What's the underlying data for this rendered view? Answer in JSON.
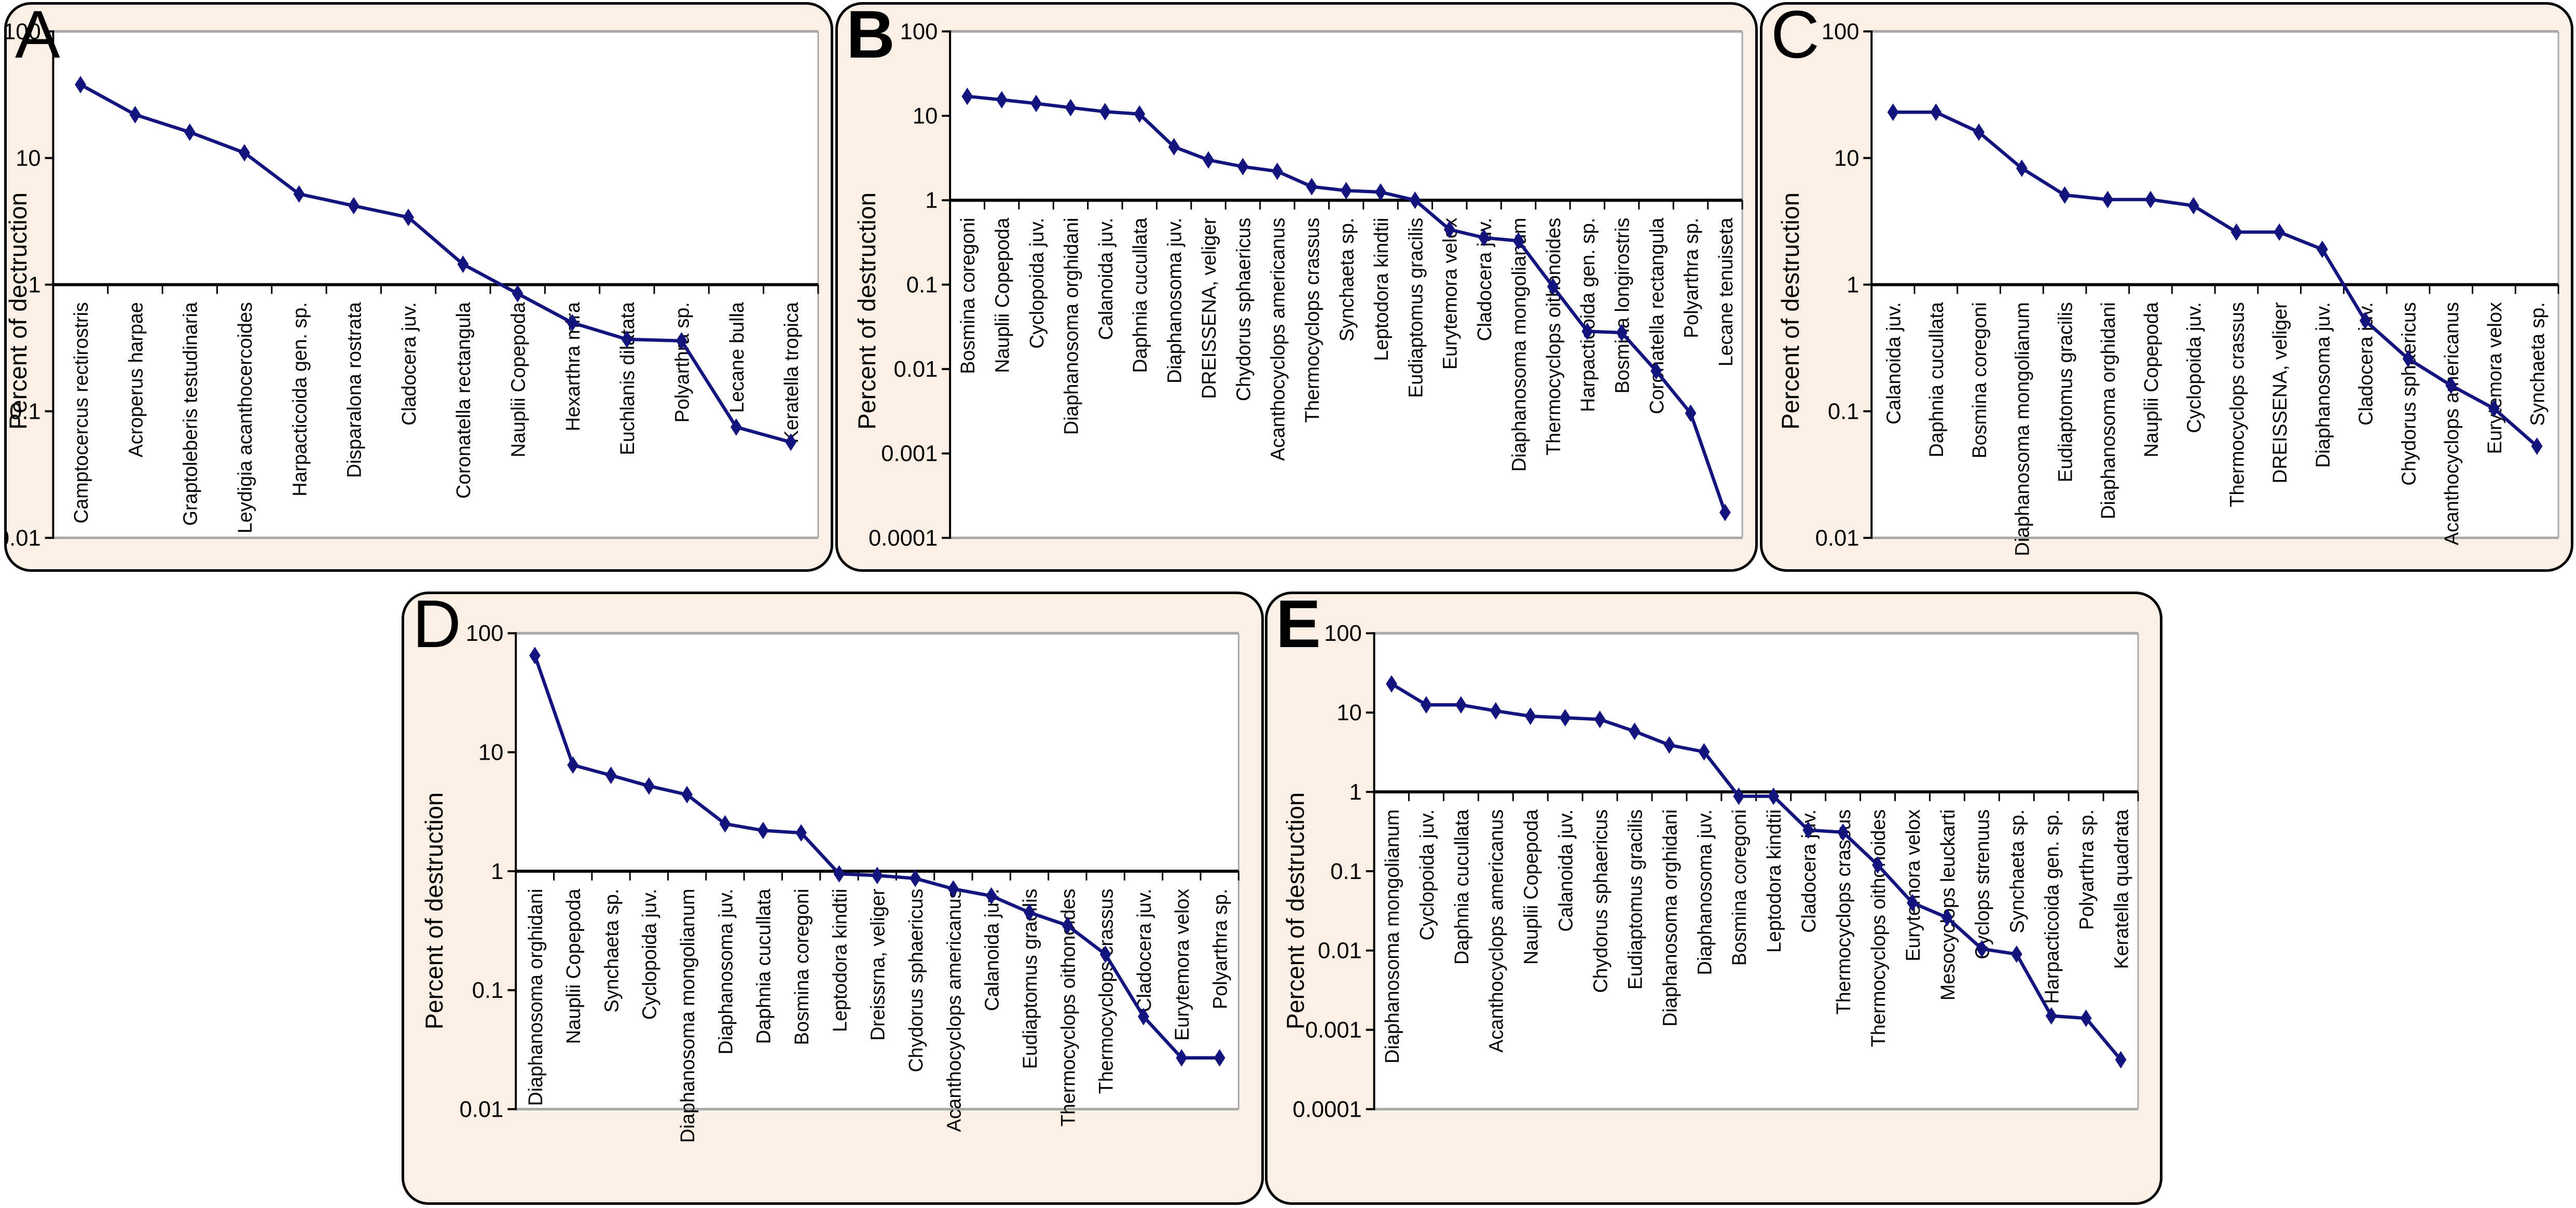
{
  "figure": {
    "description": "Five-panel figure (A-E) of log-scale rank curves of zooplankton destruction percentages",
    "panel_letters": [
      "A",
      "B",
      "C",
      "D",
      "E"
    ]
  },
  "style": {
    "panel_background": "#fcefe4",
    "panel_border": "#000000",
    "line_color": "#14147f",
    "plot_border_gray": "#a9a9a9",
    "axis_color": "#000000",
    "plot_background": "#ffffff"
  },
  "chart_data": [
    {
      "panel": "A",
      "type": "line",
      "yscale": "log",
      "ylabel": "Percent of dectruction",
      "ylim": [
        0.01,
        100
      ],
      "ytick_labels": [
        "100",
        "10",
        "1",
        "0.1",
        "0.01"
      ],
      "x_baseline_value": 1,
      "legend": "none",
      "grid": "off",
      "marker": "diamond",
      "categories": [
        "Camptocercus rectirostris",
        "Acroperus harpae",
        "Graptoleberis testudinaria",
        "Leydigia acanthocercoides",
        "Harpacticoida gen. sp.",
        "Disparalona rostrata",
        "Cladocera juv.",
        "Coronatella rectangula",
        "Nauplii Copepoda",
        "Hexarthra mira",
        "Euchlanis dilatata",
        "Polyarthra sp.",
        "Lecane bulla",
        "Keratella tropica"
      ],
      "values": [
        38,
        22,
        16,
        11,
        5.2,
        4.2,
        3.4,
        1.45,
        0.85,
        0.5,
        0.37,
        0.36,
        0.075,
        0.057
      ]
    },
    {
      "panel": "B",
      "type": "line",
      "yscale": "log",
      "ylabel": "Percent of destruction",
      "ylim": [
        0.0001,
        100
      ],
      "ytick_labels": [
        "100",
        "10",
        "1",
        "0.1",
        "0.01",
        "0.001",
        "0.0001"
      ],
      "x_baseline_value": 1,
      "legend": "none",
      "grid": "off",
      "marker": "diamond",
      "categories": [
        "Bosmina coregoni",
        "Nauplii Copepoda",
        "Cyclopoida juv.",
        "Diaphanosoma orghidani",
        "Calanoida juv.",
        "Daphnia cucullata",
        "Diaphanosoma juv.",
        "DREISSENA, veliger",
        "Chydorus sphaericus",
        "Acanthocyclops americanus",
        "Thermocyclops crassus",
        "Synchaeta sp.",
        "Leptodora kindtii",
        "Eudiaptomus gracilis",
        "Eurytemora velox",
        "Cladocera juv.",
        "Diaphanosoma mongolianum",
        "Thermocyclops oithonoides",
        "Harpacticoida gen. sp.",
        "Bosmina longirostris",
        "Coronatella rectangula",
        "Polyarthra sp.",
        "Lecane tenuiseta"
      ],
      "values": [
        17,
        15.5,
        14,
        12.5,
        11.2,
        10.5,
        4.3,
        3,
        2.5,
        2.2,
        1.45,
        1.3,
        1.25,
        1,
        0.45,
        0.36,
        0.33,
        0.095,
        0.028,
        0.027,
        0.0095,
        0.003,
        0.0002
      ]
    },
    {
      "panel": "C",
      "type": "line",
      "yscale": "log",
      "ylabel": "Percent of destruction",
      "ylim": [
        0.01,
        100
      ],
      "ytick_labels": [
        "100",
        "10",
        "1",
        "0.1",
        "0.01"
      ],
      "x_baseline_value": 1,
      "legend": "none",
      "grid": "off",
      "marker": "diamond",
      "categories": [
        "Calanoida juv.",
        "Daphnia cucullata",
        "Bosmina coregoni",
        "Diaphanosoma mongolianum",
        "Eudiaptomus gracilis",
        "Diaphanosoma orghidani",
        "Nauplii Copepoda",
        "Cyclopoida juv.",
        "Thermocyclops crassus",
        "DREISSENA, veliger",
        "Diaphanosoma juv.",
        "Cladocera juv.",
        "Chydorus sphaericus",
        "Acanthocyclops americanus",
        "Eurytemora velox",
        "Synchaeta sp."
      ],
      "values": [
        23,
        23,
        16,
        8.3,
        5.1,
        4.7,
        4.7,
        4.2,
        2.6,
        2.6,
        1.9,
        0.52,
        0.26,
        0.16,
        0.105,
        0.053
      ]
    },
    {
      "panel": "D",
      "type": "line",
      "yscale": "log",
      "ylabel": "Percent of destruction",
      "ylim": [
        0.01,
        100
      ],
      "ytick_labels": [
        "100",
        "10",
        "1",
        "0.1",
        "0.01"
      ],
      "x_baseline_value": 1,
      "legend": "none",
      "grid": "off",
      "marker": "diamond",
      "categories": [
        "Diaphanosoma orghidani",
        "Nauplii Copepoda",
        "Synchaeta sp.",
        "Cyclopoida juv.",
        "Diaphanosoma mongolianum",
        "Diaphanosoma juv.",
        "Daphnia cucullata",
        "Bosmina coregoni",
        "Leptodora kindtii",
        "Dreissrna, veliger",
        "Chydorus sphaericus",
        "Acanthocyclops americanus",
        "Calanoida juv.",
        "Eudiaptomus gracilis",
        "Thermocyclops oithonoides",
        "Thermocyclops crassus",
        "Cladocera juv.",
        "Eurytemora velox",
        "Polyarthra sp."
      ],
      "values": [
        65,
        7.8,
        6.4,
        5.2,
        4.4,
        2.5,
        2.2,
        2.1,
        0.95,
        0.92,
        0.87,
        0.71,
        0.62,
        0.45,
        0.35,
        0.2,
        0.06,
        0.027,
        0.027
      ]
    },
    {
      "panel": "E",
      "type": "line",
      "yscale": "log",
      "ylabel": "Percent of destruction",
      "ylim": [
        0.0001,
        100
      ],
      "ytick_labels": [
        "100",
        "10",
        "1",
        "0.1",
        "0.01",
        "0.001",
        "0.0001"
      ],
      "x_baseline_value": 1,
      "legend": "none",
      "grid": "off",
      "marker": "diamond",
      "categories": [
        "Diaphanosoma mongolianum",
        "Cyclopoida juv.",
        "Daphnia cucullata",
        "Acanthocyclops americanus",
        "Nauplii Copepoda",
        "Calanoida juv.",
        "Chydorus sphaericus",
        "Eudiaptomus gracilis",
        "Diaphanosoma orghidani",
        "Diaphanosoma juv.",
        "Bosmina coregoni",
        "Leptodora kindtii",
        "Cladocera juv.",
        "Thermocyclops crassus",
        "Thermocyclops oithonoides",
        "Eurytemora velox",
        "Mesocyclops leuckarti",
        "Cyclops strenuus",
        "Synchaeta sp.",
        "Harpacticoida gen. sp.",
        "Polyarthra sp.",
        "Keratella quadrata"
      ],
      "values": [
        23,
        12.5,
        12.5,
        10.5,
        9,
        8.6,
        8.2,
        5.8,
        3.9,
        3.2,
        0.88,
        0.88,
        0.33,
        0.31,
        0.12,
        0.04,
        0.026,
        0.0105,
        0.009,
        0.0015,
        0.0014,
        0.00042
      ]
    }
  ]
}
